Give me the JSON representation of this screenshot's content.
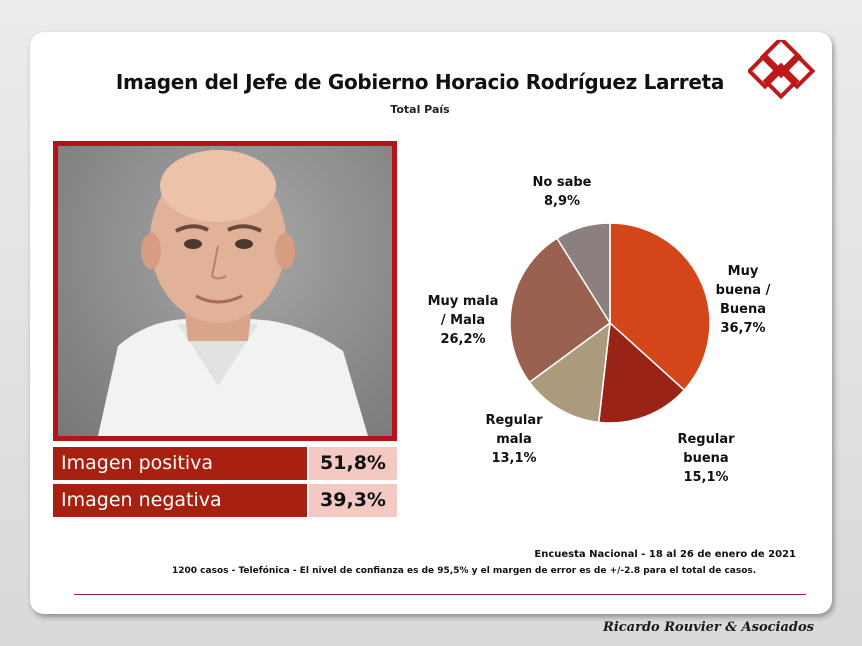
{
  "header": {
    "title": "Imagen del Jefe de Gobierno Horacio Rodríguez Larreta",
    "subtitle": "Total País"
  },
  "stats": [
    {
      "label": "Imagen positiva",
      "value": "51,8%"
    },
    {
      "label": "Imagen negativa",
      "value": "39,3%"
    }
  ],
  "chart_data": {
    "type": "pie",
    "slices": [
      {
        "label_lines": [
          "Muy",
          "buena /",
          "Buena"
        ],
        "value": 36.7,
        "value_text": "36,7%",
        "color": "#d4461a"
      },
      {
        "label_lines": [
          "Regular",
          "buena"
        ],
        "value": 15.1,
        "value_text": "15,1%",
        "color": "#9a2318"
      },
      {
        "label_lines": [
          "Regular",
          "mala"
        ],
        "value": 13.1,
        "value_text": "13,1%",
        "color": "#ab9a7c"
      },
      {
        "label_lines": [
          "Muy mala",
          "/ Mala"
        ],
        "value": 26.2,
        "value_text": "26,2%",
        "color": "#9b6150"
      },
      {
        "label_lines": [
          "No sabe"
        ],
        "value": 8.9,
        "value_text": "8,9%",
        "color": "#8b7f7f"
      }
    ]
  },
  "footer": {
    "survey": "Encuesta Nacional  -  18 al 26 de enero de 2021",
    "methodology": "1200 casos  -  Telefónica    - El nivel  de confianza  es  de  95,5% y  el  margen de  error es  de  +/-2.8  para  el  total  de  casos.",
    "brand": "Ricardo Rouvier & Asociados"
  }
}
